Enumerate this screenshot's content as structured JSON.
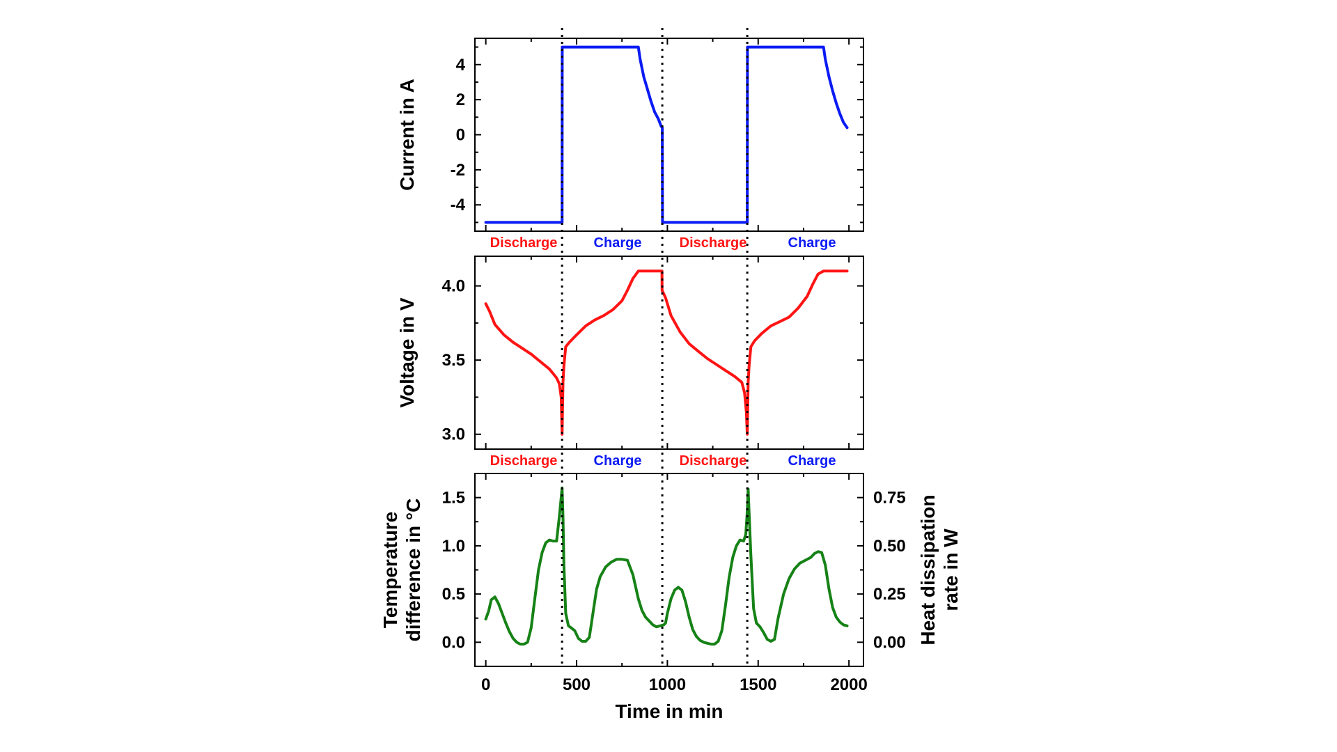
{
  "chart_data": [
    {
      "type": "line",
      "panel": "current",
      "ylabel": "Current in A",
      "xlim": [
        -60,
        2080
      ],
      "ylim": [
        -5.5,
        5.5
      ],
      "yticks": [
        -4,
        -2,
        0,
        2,
        4
      ],
      "ytick_labels": [
        "-4",
        "-2",
        "0",
        "2",
        "4"
      ],
      "color": "#0b1bf4",
      "phase_labels": [
        "Discharge",
        "Charge",
        "Discharge",
        "Charge"
      ],
      "series": [
        {
          "name": "Current",
          "x": [
            0,
            420,
            421,
            840,
            850,
            870,
            890,
            910,
            930,
            950,
            965,
            972,
            973,
            1440,
            1441,
            1860,
            1870,
            1890,
            1910,
            1930,
            1950,
            1970,
            1990
          ],
          "y": [
            -5,
            -5,
            5,
            5,
            4.3,
            3.3,
            2.6,
            1.9,
            1.3,
            0.9,
            0.5,
            0.4,
            -5,
            -5,
            5,
            5,
            4.3,
            3.3,
            2.5,
            1.8,
            1.2,
            0.7,
            0.4
          ]
        }
      ]
    },
    {
      "type": "line",
      "panel": "voltage",
      "ylabel": "Voltage in V",
      "xlim": [
        -60,
        2080
      ],
      "ylim": [
        2.9,
        4.2
      ],
      "yticks": [
        3.0,
        3.5,
        4.0
      ],
      "ytick_labels": [
        "3.0",
        "3.5",
        "4.0"
      ],
      "color": "#ff1414",
      "phase_labels": [
        "Discharge",
        "Charge",
        "Discharge",
        "Charge"
      ],
      "series": [
        {
          "name": "Voltage",
          "x": [
            0,
            20,
            50,
            100,
            150,
            200,
            250,
            300,
            350,
            390,
            405,
            415,
            420,
            425,
            430,
            440,
            460,
            500,
            550,
            600,
            650,
            700,
            750,
            780,
            810,
            840,
            970,
            971,
            990,
            1020,
            1070,
            1120,
            1170,
            1220,
            1270,
            1320,
            1370,
            1410,
            1425,
            1435,
            1440,
            1445,
            1450,
            1460,
            1480,
            1520,
            1570,
            1620,
            1670,
            1720,
            1770,
            1800,
            1830,
            1860,
            1990
          ],
          "y": [
            3.88,
            3.83,
            3.74,
            3.67,
            3.62,
            3.58,
            3.54,
            3.49,
            3.44,
            3.38,
            3.34,
            3.25,
            3.0,
            3.35,
            3.46,
            3.59,
            3.62,
            3.67,
            3.73,
            3.77,
            3.8,
            3.84,
            3.9,
            3.97,
            4.05,
            4.1,
            4.1,
            3.97,
            3.92,
            3.8,
            3.69,
            3.61,
            3.56,
            3.51,
            3.47,
            3.43,
            3.39,
            3.35,
            3.28,
            3.15,
            3.0,
            3.35,
            3.46,
            3.59,
            3.63,
            3.68,
            3.73,
            3.76,
            3.79,
            3.85,
            3.93,
            4.01,
            4.08,
            4.1,
            4.1
          ]
        }
      ]
    },
    {
      "type": "line",
      "panel": "temperature",
      "ylabel": "Temperature difference in °C",
      "ylabel_right": "Heat dissipation rate in W",
      "xlabel": "Time in min",
      "xlim": [
        -60,
        2080
      ],
      "xticks": [
        0,
        500,
        1000,
        1500,
        2000
      ],
      "xtick_labels": [
        "0",
        "500",
        "1000",
        "1500",
        "2000"
      ],
      "ylim": [
        -0.25,
        1.75
      ],
      "yticks": [
        0.0,
        0.5,
        1.0,
        1.5
      ],
      "ytick_labels": [
        "0.0",
        "0.5",
        "1.0",
        "1.5"
      ],
      "ylim_right": [
        -0.125,
        0.875
      ],
      "yticks_right": [
        0.0,
        0.25,
        0.5,
        0.75
      ],
      "ytick_labels_right": [
        "0.00",
        "0.25",
        "0.50",
        "0.75"
      ],
      "color": "#168216",
      "series": [
        {
          "name": "Temperature difference",
          "x": [
            0,
            15,
            30,
            50,
            70,
            90,
            110,
            130,
            150,
            170,
            190,
            210,
            230,
            250,
            270,
            290,
            310,
            330,
            350,
            370,
            390,
            405,
            415,
            420,
            425,
            430,
            440,
            455,
            470,
            490,
            510,
            530,
            550,
            570,
            590,
            610,
            630,
            660,
            690,
            720,
            750,
            780,
            810,
            840,
            860,
            880,
            900,
            920,
            940,
            960,
            980,
            990,
            1000,
            1020,
            1040,
            1060,
            1080,
            1100,
            1120,
            1140,
            1160,
            1180,
            1200,
            1220,
            1240,
            1260,
            1280,
            1300,
            1320,
            1340,
            1360,
            1380,
            1400,
            1420,
            1432,
            1440,
            1445,
            1450,
            1460,
            1475,
            1490,
            1510,
            1530,
            1550,
            1570,
            1590,
            1610,
            1640,
            1670,
            1700,
            1730,
            1760,
            1790,
            1810,
            1830,
            1850,
            1870,
            1890,
            1910,
            1930,
            1950,
            1970,
            1990
          ],
          "y": [
            0.24,
            0.32,
            0.44,
            0.47,
            0.4,
            0.3,
            0.2,
            0.11,
            0.04,
            0.0,
            -0.02,
            -0.02,
            0.0,
            0.15,
            0.45,
            0.75,
            0.93,
            1.03,
            1.06,
            1.05,
            1.05,
            1.3,
            1.5,
            1.6,
            1.3,
            0.8,
            0.3,
            0.17,
            0.15,
            0.12,
            0.04,
            0.01,
            0.01,
            0.05,
            0.3,
            0.55,
            0.68,
            0.78,
            0.83,
            0.86,
            0.86,
            0.85,
            0.7,
            0.45,
            0.33,
            0.26,
            0.22,
            0.18,
            0.16,
            0.17,
            0.18,
            0.2,
            0.3,
            0.45,
            0.54,
            0.57,
            0.54,
            0.42,
            0.26,
            0.13,
            0.06,
            0.02,
            0.0,
            -0.01,
            -0.02,
            -0.02,
            0.01,
            0.12,
            0.38,
            0.67,
            0.88,
            1.0,
            1.06,
            1.05,
            1.12,
            1.35,
            1.59,
            1.35,
            0.9,
            0.35,
            0.2,
            0.16,
            0.1,
            0.03,
            0.01,
            0.03,
            0.25,
            0.5,
            0.66,
            0.76,
            0.82,
            0.85,
            0.88,
            0.92,
            0.94,
            0.93,
            0.8,
            0.55,
            0.36,
            0.26,
            0.21,
            0.18,
            0.17
          ]
        }
      ]
    }
  ],
  "dividers_x": [
    420,
    972,
    1440
  ]
}
